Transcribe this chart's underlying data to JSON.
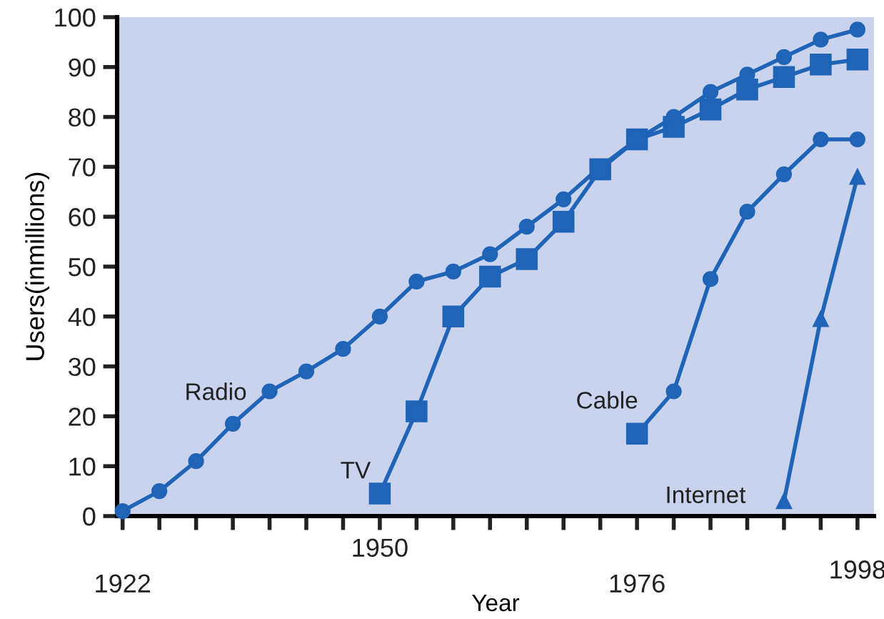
{
  "chart_data": {
    "type": "line",
    "xlabel": "Year",
    "ylabel": "Users(inmillions)",
    "categories": [
      "1922",
      null,
      null,
      null,
      null,
      null,
      null,
      "1950",
      null,
      null,
      null,
      null,
      null,
      null,
      "1976",
      null,
      null,
      null,
      null,
      null,
      "1998"
    ],
    "series": [
      {
        "name": "Radio",
        "color": "#1f64b6",
        "marker": "circle",
        "values": [
          1,
          5,
          11,
          18.5,
          25,
          29,
          33.5,
          40,
          47,
          49,
          52.5,
          58,
          63.5,
          70,
          75.5,
          80,
          85,
          88.5,
          92,
          95.5,
          97.5
        ]
      },
      {
        "name": "TV",
        "color": "#1f64b6",
        "marker": "square",
        "values": [
          null,
          null,
          null,
          null,
          null,
          null,
          null,
          4.5,
          21,
          40,
          48,
          51.5,
          59,
          69.5,
          75.5,
          78,
          81.5,
          85.5,
          88,
          90.5,
          91.5
        ]
      },
      {
        "name": "Cable",
        "color": "#1f64b6",
        "marker": "circle",
        "values": [
          null,
          null,
          null,
          null,
          null,
          null,
          null,
          null,
          null,
          null,
          null,
          null,
          null,
          null,
          16.5,
          25,
          47.5,
          61,
          68.5,
          75.5,
          75.5
        ]
      },
      {
        "type": "scatter",
        "color": "#1f64b6",
        "marker": "square",
        "values": [
          null,
          null,
          null,
          null,
          null,
          null,
          null,
          null,
          null,
          null,
          null,
          null,
          null,
          null,
          16.5,
          null,
          null,
          null,
          null,
          null,
          null
        ]
      },
      {
        "name": "Internet",
        "color": "#1f64b6",
        "marker": "triangle",
        "values": [
          null,
          null,
          null,
          null,
          null,
          null,
          null,
          null,
          null,
          null,
          null,
          null,
          null,
          null,
          null,
          null,
          null,
          null,
          3,
          39.5,
          68
        ]
      }
    ],
    "ylim": [
      0,
      100
    ],
    "yticks": [
      0,
      10,
      20,
      30,
      40,
      50,
      60,
      70,
      80,
      90,
      100
    ],
    "grid": false,
    "legend": false,
    "line_style": "solid"
  }
}
